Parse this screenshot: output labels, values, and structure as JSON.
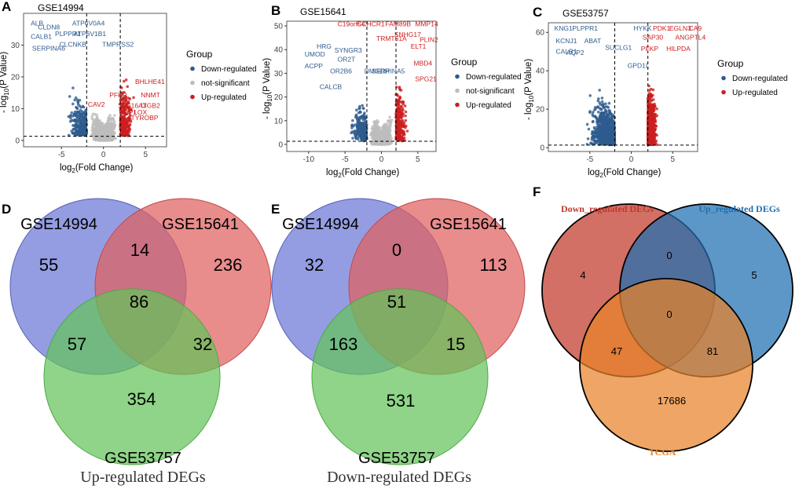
{
  "panels": [
    {
      "letter": "A",
      "dataset": "GSE14994"
    },
    {
      "letter": "B",
      "dataset": "GSE15641"
    },
    {
      "letter": "C",
      "dataset": "GSE53757"
    },
    {
      "letter": "D"
    },
    {
      "letter": "E"
    },
    {
      "letter": "F"
    }
  ],
  "volcano": {
    "ylabel_prefix": "- log",
    "ylabel_sub": "10",
    "ylabel_suffix": "(P Value)",
    "xlabel_prefix": "log",
    "xlabel_sub": "2",
    "xlabel_suffix": "(Fold Change)",
    "legend_title": "Group",
    "colors": {
      "down": "#2e5b8e",
      "ns": "#bdbdbd",
      "up": "#cc1f1f"
    }
  },
  "chart_data": [
    {
      "type": "scatter",
      "title": "GSE14994",
      "xlabel": "log2(Fold Change)",
      "ylabel": "-log10(P Value)",
      "xlim": [
        -9.5,
        7.5
      ],
      "ylim": [
        -2,
        40
      ],
      "xticks": [
        -5,
        0,
        5
      ],
      "yticks": [
        0,
        10,
        20,
        30
      ],
      "thresholds": {
        "x": [
          -2,
          2
        ],
        "y": 1.3
      },
      "legend": [
        "Down-regulated",
        "not-significant",
        "Up-regulated"
      ],
      "down_labels": [
        "ALB",
        "CLDN8",
        "ATP6V0A4",
        "CALB1",
        "PLPPR1",
        "ATP6V1B1",
        "SERPINA6",
        "CLCNKB",
        "TMPRSS2"
      ],
      "up_labels": [
        "BHLHE41",
        "NNMT",
        "PFKP",
        "CAV2",
        "SLC16A3",
        "CAP1",
        "LOX",
        "ITGB2",
        "TYROBP"
      ]
    },
    {
      "type": "scatter",
      "title": "GSE15641",
      "xlabel": "log2(Fold Change)",
      "ylabel": "-log10(P Value)",
      "xlim": [
        -13,
        7.5
      ],
      "ylim": [
        -3,
        52
      ],
      "xticks": [
        -10,
        -5,
        0,
        5
      ],
      "yticks": [
        0,
        10,
        20,
        30,
        40,
        50
      ],
      "thresholds": {
        "x": [
          -2,
          2
        ],
        "y": 1.3
      },
      "legend": [
        "Down-regulated",
        "not-significant",
        "Up-regulated"
      ],
      "down_labels": [
        "UMOD",
        "HRG",
        "SYNGR3",
        "ACPP",
        "OR2T",
        "OR2B6",
        "DMGDH",
        "SERPINA5",
        "CALCB"
      ],
      "up_labels": [
        "C19orf54",
        "CCHCR1",
        "FAM89B",
        "MMP14",
        "SNHG17",
        "TRMT61A",
        "PLIN2",
        "ELT1",
        "MBD4",
        "SPG21"
      ]
    },
    {
      "type": "scatter",
      "title": "GSE53757",
      "xlabel": "log2(Fold Change)",
      "ylabel": "-log10(P Value)",
      "xlim": [
        -10,
        8
      ],
      "ylim": [
        -2,
        65
      ],
      "xticks": [
        -5,
        0,
        5
      ],
      "yticks": [
        0,
        20,
        40,
        60
      ],
      "thresholds": {
        "x": [
          -2,
          2
        ],
        "y": 1.3
      },
      "legend": [
        "Down-regulated",
        "Up-regulated"
      ],
      "down_labels": [
        "KNG1",
        "PLPPR1",
        "HYKK",
        "KCNJ1",
        "ABAT",
        "CALB1",
        "AQP2",
        "SUCLG1",
        "GPD1L"
      ],
      "up_labels": [
        "PDK1",
        "EGLN3",
        "CA9",
        "SAP30",
        "ANGPTL4",
        "PFKP",
        "HILPDA"
      ]
    },
    {
      "type": "venn",
      "caption": "Up-regulated DEGs",
      "sets": [
        "GSE14994",
        "GSE15641",
        "GSE53757"
      ],
      "regions": {
        "A": 55,
        "B": 236,
        "C": 354,
        "AB": 14,
        "AC": 57,
        "BC": 32,
        "ABC": 86
      }
    },
    {
      "type": "venn",
      "caption": "Down-regulated DEGs",
      "sets": [
        "GSE14994",
        "GSE15641",
        "GSE53757"
      ],
      "regions": {
        "A": 32,
        "B": 113,
        "C": 531,
        "AB": 0,
        "AC": 163,
        "BC": 15,
        "ABC": 51
      }
    },
    {
      "type": "venn",
      "sets": [
        "Down_regulated DEGs",
        "Up_regulated DEGs",
        "TCGA"
      ],
      "regions": {
        "A": 4,
        "B": 5,
        "C": 17686,
        "AB": 0,
        "AC": 47,
        "BC": 81,
        "ABC": 0
      }
    }
  ]
}
